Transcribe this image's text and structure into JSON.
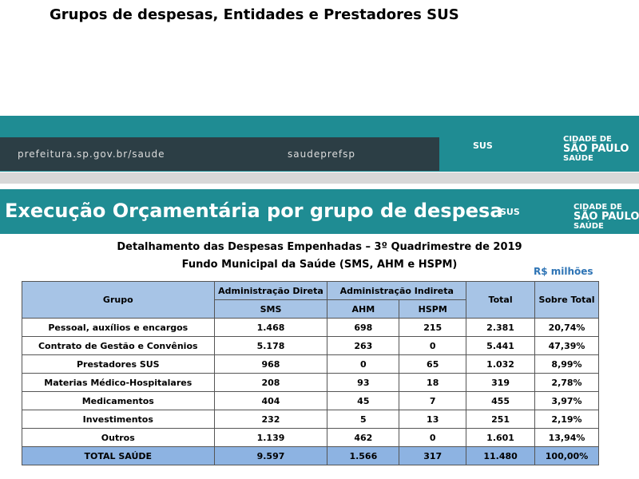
{
  "header": {
    "title": "Grupos de despesas, Entidades e Prestadores SUS",
    "site": "prefeitura.sp.gov.br/saude",
    "social": "saudeprefsp",
    "sus": "SUS",
    "logo": [
      "CIDADE DE",
      "SÃO PAULO",
      "SAÚDE"
    ]
  },
  "banner": {
    "title": "Execução Orçamentária por grupo de despesa",
    "sus": "SUS",
    "logo": [
      "CIDADE DE",
      "SÃO PAULO",
      "SAÚDE"
    ]
  },
  "table": {
    "caption": [
      "Detalhamento das Despesas Empenhadas – 3º Quadrimestre de 2019",
      "Fundo Municipal da Saúde (SMS, AHM e HSPM)"
    ],
    "unit": "R$ milhões",
    "head": {
      "group": "Grupo",
      "direct": "Administração Direta",
      "indirect": "Administração Indireta",
      "sms": "SMS",
      "ahm": "AHM",
      "hspm": "HSPM",
      "total": "Total",
      "share": "Sobre Total"
    },
    "rows": [
      [
        "Pessoal, auxílios e encargos",
        "1.468",
        "698",
        "215",
        "2.381",
        "20,74%"
      ],
      [
        "Contrato de Gestão e Convênios",
        "5.178",
        "263",
        "0",
        "5.441",
        "47,39%"
      ],
      [
        "Prestadores SUS",
        "968",
        "0",
        "65",
        "1.032",
        "8,99%"
      ],
      [
        "Materias Médico-Hospitalares",
        "208",
        "93",
        "18",
        "319",
        "2,78%"
      ],
      [
        "Medicamentos",
        "404",
        "45",
        "7",
        "455",
        "3,97%"
      ],
      [
        "Investimentos",
        "232",
        "5",
        "13",
        "251",
        "2,19%"
      ],
      [
        "Outros",
        "1.139",
        "462",
        "0",
        "1.601",
        "13,94%"
      ],
      [
        "TOTAL SAÚDE",
        "9.597",
        "1.566",
        "317",
        "11.480",
        "100,00%"
      ]
    ]
  }
}
